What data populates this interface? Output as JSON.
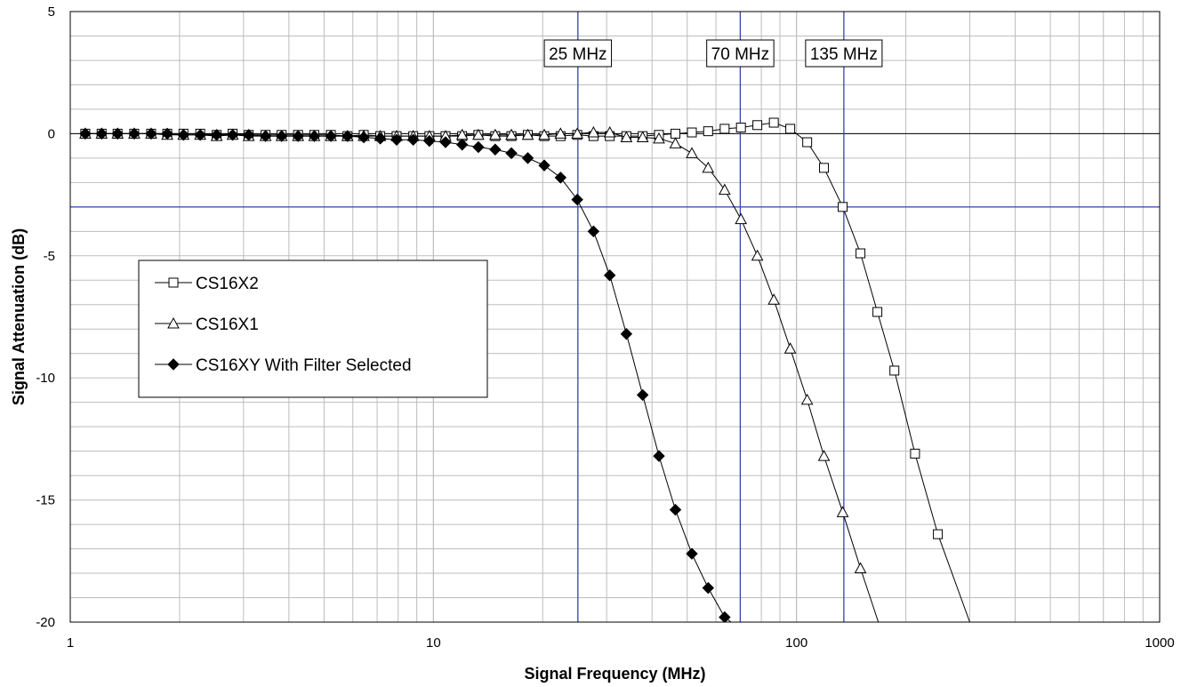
{
  "chart_data": {
    "type": "line",
    "title": "",
    "xlabel": "Signal Frequency (MHz)",
    "ylabel": "Signal Attenuation (dB)",
    "x_scale": "log",
    "xlim": [
      1,
      1000
    ],
    "ylim": [
      -20,
      5
    ],
    "x_ticks": [
      "1",
      "10",
      "100",
      "1000"
    ],
    "y_ticks": [
      "5",
      "0",
      "-5",
      "-10",
      "-15",
      "-20"
    ],
    "grid": true,
    "legend_position": "left-middle",
    "reference_lines": {
      "vertical": [
        {
          "x": 25,
          "label": "25 MHz"
        },
        {
          "x": 70,
          "label": "70 MHz"
        },
        {
          "x": 135,
          "label": "135 MHz"
        }
      ],
      "horizontal": [
        {
          "y": -3
        }
      ],
      "color": "#3344aa"
    },
    "series": [
      {
        "name": "CS16X2",
        "marker": "open-square",
        "x": [
          1.1,
          1.22,
          1.35,
          1.5,
          1.67,
          1.85,
          2.05,
          2.28,
          2.53,
          2.8,
          3.1,
          3.45,
          3.82,
          4.24,
          4.7,
          5.22,
          5.8,
          6.43,
          7.14,
          7.92,
          8.8,
          9.75,
          10.8,
          12,
          13.3,
          14.8,
          16.4,
          18.2,
          20.2,
          22.4,
          24.9,
          27.6,
          30.6,
          34,
          37.7,
          41.8,
          46.4,
          51.5,
          57.1,
          63.4,
          70.3,
          78,
          86.6,
          96.1,
          107,
          119,
          134,
          150,
          167,
          186,
          212,
          245,
          300
        ],
        "y": [
          0,
          0,
          0,
          0,
          0,
          0,
          0,
          0,
          -0.05,
          0,
          -0.05,
          -0.05,
          -0.05,
          -0.05,
          -0.05,
          -0.05,
          -0.1,
          -0.05,
          -0.1,
          -0.1,
          -0.1,
          -0.1,
          -0.1,
          -0.1,
          -0.05,
          -0.1,
          -0.1,
          -0.05,
          -0.1,
          -0.1,
          -0.05,
          -0.1,
          -0.1,
          -0.1,
          -0.1,
          -0.05,
          0,
          0.05,
          0.1,
          0.2,
          0.25,
          0.35,
          0.45,
          0.2,
          -0.35,
          -1.4,
          -3.0,
          -4.9,
          -7.3,
          -9.7,
          -13.1,
          -16.4,
          -20
        ]
      },
      {
        "name": "CS16X1",
        "marker": "open-triangle",
        "x": [
          1.1,
          1.22,
          1.35,
          1.5,
          1.67,
          1.85,
          2.05,
          2.28,
          2.53,
          2.8,
          3.1,
          3.45,
          3.82,
          4.24,
          4.7,
          5.22,
          5.8,
          6.43,
          7.14,
          7.92,
          8.8,
          9.75,
          10.8,
          12,
          13.3,
          14.8,
          16.4,
          18.2,
          20.2,
          22.4,
          24.9,
          27.6,
          30.6,
          34,
          37.7,
          41.8,
          46.4,
          51.5,
          57.1,
          63.4,
          70.3,
          78,
          86.6,
          96.1,
          107,
          119,
          134,
          150,
          168
        ],
        "y": [
          0,
          0,
          0,
          0,
          0,
          -0.05,
          -0.05,
          -0.05,
          -0.1,
          -0.05,
          -0.1,
          -0.1,
          -0.1,
          -0.1,
          -0.1,
          -0.1,
          -0.1,
          -0.1,
          -0.1,
          -0.1,
          -0.1,
          -0.1,
          -0.1,
          -0.05,
          -0.05,
          -0.05,
          -0.05,
          -0.05,
          -0.05,
          0,
          0,
          0.05,
          0.05,
          -0.15,
          -0.15,
          -0.2,
          -0.4,
          -0.8,
          -1.4,
          -2.3,
          -3.5,
          -5.0,
          -6.8,
          -8.8,
          -10.9,
          -13.2,
          -15.5,
          -17.8,
          -20
        ]
      },
      {
        "name": "CS16XY With Filter Selected",
        "marker": "filled-diamond",
        "x": [
          1.1,
          1.22,
          1.35,
          1.5,
          1.67,
          1.85,
          2.05,
          2.28,
          2.53,
          2.8,
          3.1,
          3.45,
          3.82,
          4.24,
          4.7,
          5.22,
          5.8,
          6.43,
          7.14,
          7.92,
          8.8,
          9.75,
          10.8,
          12,
          13.3,
          14.8,
          16.4,
          18.2,
          20.2,
          22.4,
          24.9,
          27.6,
          30.6,
          34,
          37.7,
          41.8,
          46.4,
          51.5,
          57.1,
          63.4,
          66
        ],
        "y": [
          0,
          0,
          0,
          0,
          0,
          0,
          -0.05,
          -0.05,
          -0.05,
          -0.05,
          -0.05,
          -0.1,
          -0.1,
          -0.1,
          -0.1,
          -0.1,
          -0.1,
          -0.15,
          -0.2,
          -0.25,
          -0.25,
          -0.3,
          -0.35,
          -0.45,
          -0.55,
          -0.65,
          -0.8,
          -1.0,
          -1.3,
          -1.8,
          -2.7,
          -4.0,
          -5.8,
          -8.2,
          -10.7,
          -13.2,
          -15.4,
          -17.2,
          -18.6,
          -19.8,
          -20
        ]
      }
    ]
  }
}
